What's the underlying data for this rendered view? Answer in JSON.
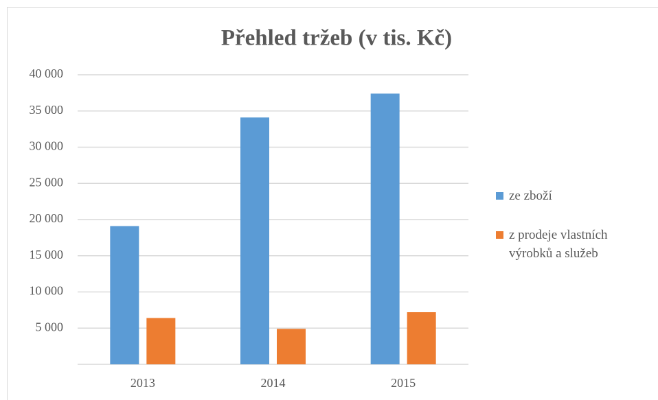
{
  "chart_data": {
    "type": "bar",
    "title": "Přehled tržeb (v tis. Kč)",
    "categories": [
      "2013",
      "2014",
      "2015"
    ],
    "series": [
      {
        "name": "ze zboží",
        "color": "#5b9bd5",
        "values": [
          19100,
          34100,
          37400
        ]
      },
      {
        "name": "z prodeje vlastních výrobků a služeb",
        "color": "#ed7d31",
        "values": [
          6400,
          4900,
          7200
        ]
      }
    ],
    "ylim": [
      0,
      40000
    ],
    "yticks": [
      {
        "value": 5000,
        "label": "5 000"
      },
      {
        "value": 10000,
        "label": "10 000"
      },
      {
        "value": 15000,
        "label": "15 000"
      },
      {
        "value": 20000,
        "label": "20 000"
      },
      {
        "value": 25000,
        "label": "25 000"
      },
      {
        "value": 30000,
        "label": "30 000"
      },
      {
        "value": 35000,
        "label": "35 000"
      },
      {
        "value": 40000,
        "label": "40 000"
      }
    ],
    "grid": true,
    "legend": "right"
  }
}
